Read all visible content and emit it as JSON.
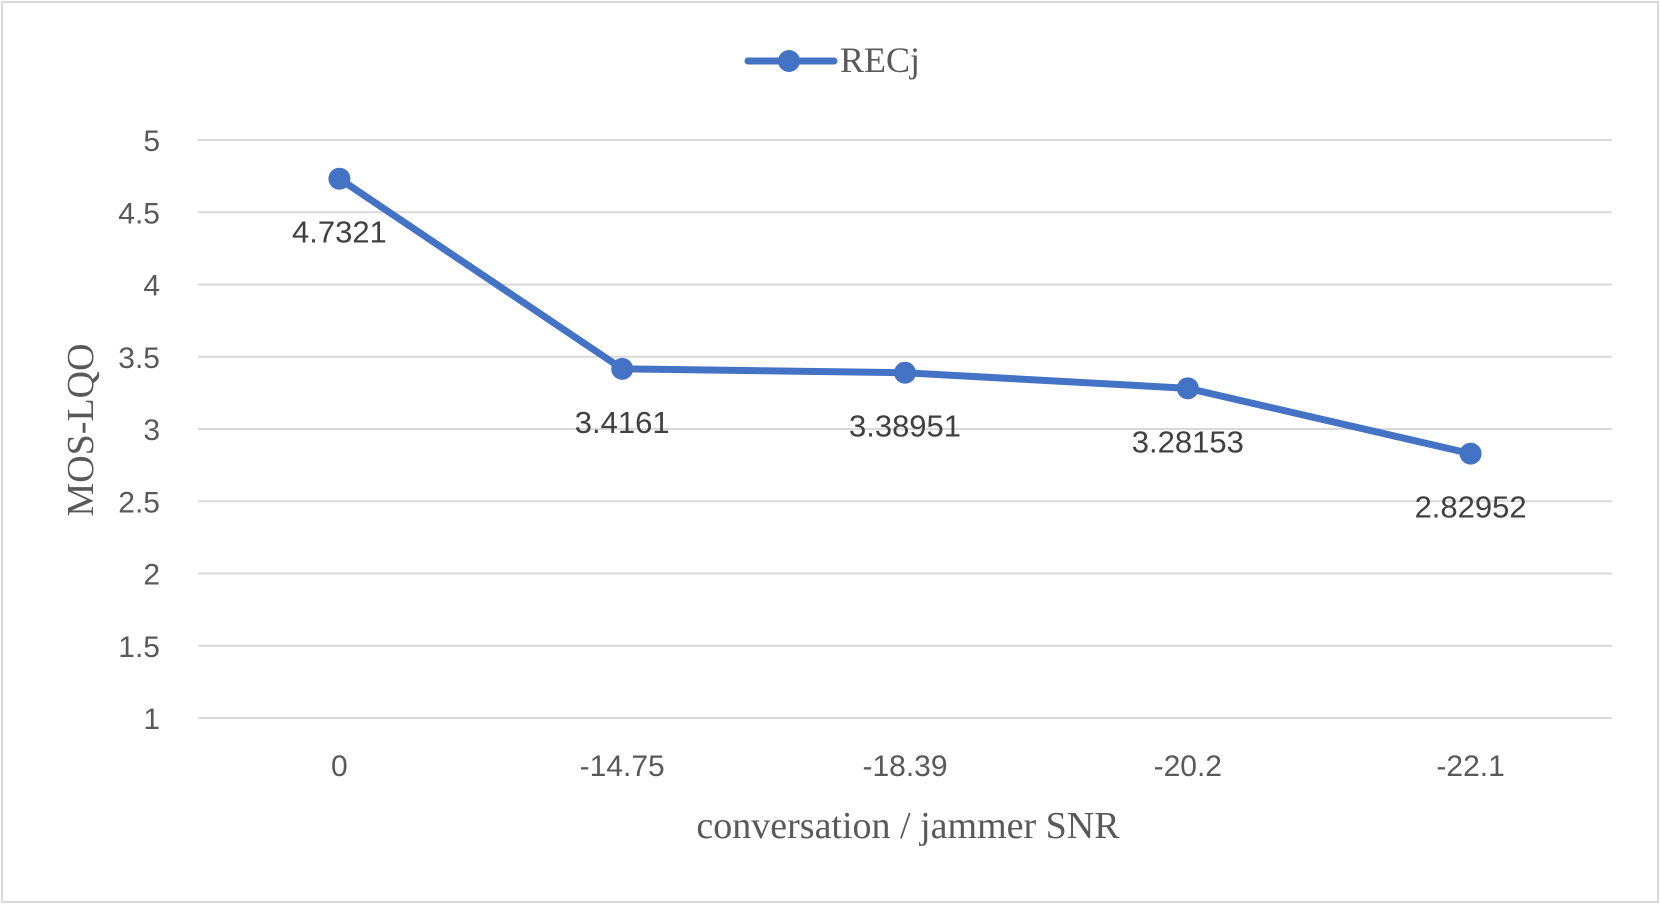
{
  "chart_data": {
    "type": "line",
    "categories": [
      "0",
      "-14.75",
      "-18.39",
      "-20.2",
      "-22.1"
    ],
    "series": [
      {
        "name": "RECj",
        "values": [
          4.7321,
          3.4161,
          3.38951,
          3.28153,
          2.82952
        ],
        "data_labels": [
          "4.7321",
          "3.4161",
          "3.38951",
          "3.28153",
          "2.82952"
        ]
      }
    ],
    "title": "",
    "xlabel": "conversation / jammer SNR",
    "ylabel": "MOS-LQO",
    "ylim": [
      1,
      5
    ],
    "yticks": [
      "1",
      "1.5",
      "2",
      "2.5",
      "3",
      "3.5",
      "4",
      "4.5",
      "5"
    ],
    "grid": true,
    "legend_position": "top-center",
    "colors": {
      "series": "#4472c4",
      "grid": "#d9d9d9",
      "text": "#595959",
      "data_label": "#404040"
    }
  }
}
